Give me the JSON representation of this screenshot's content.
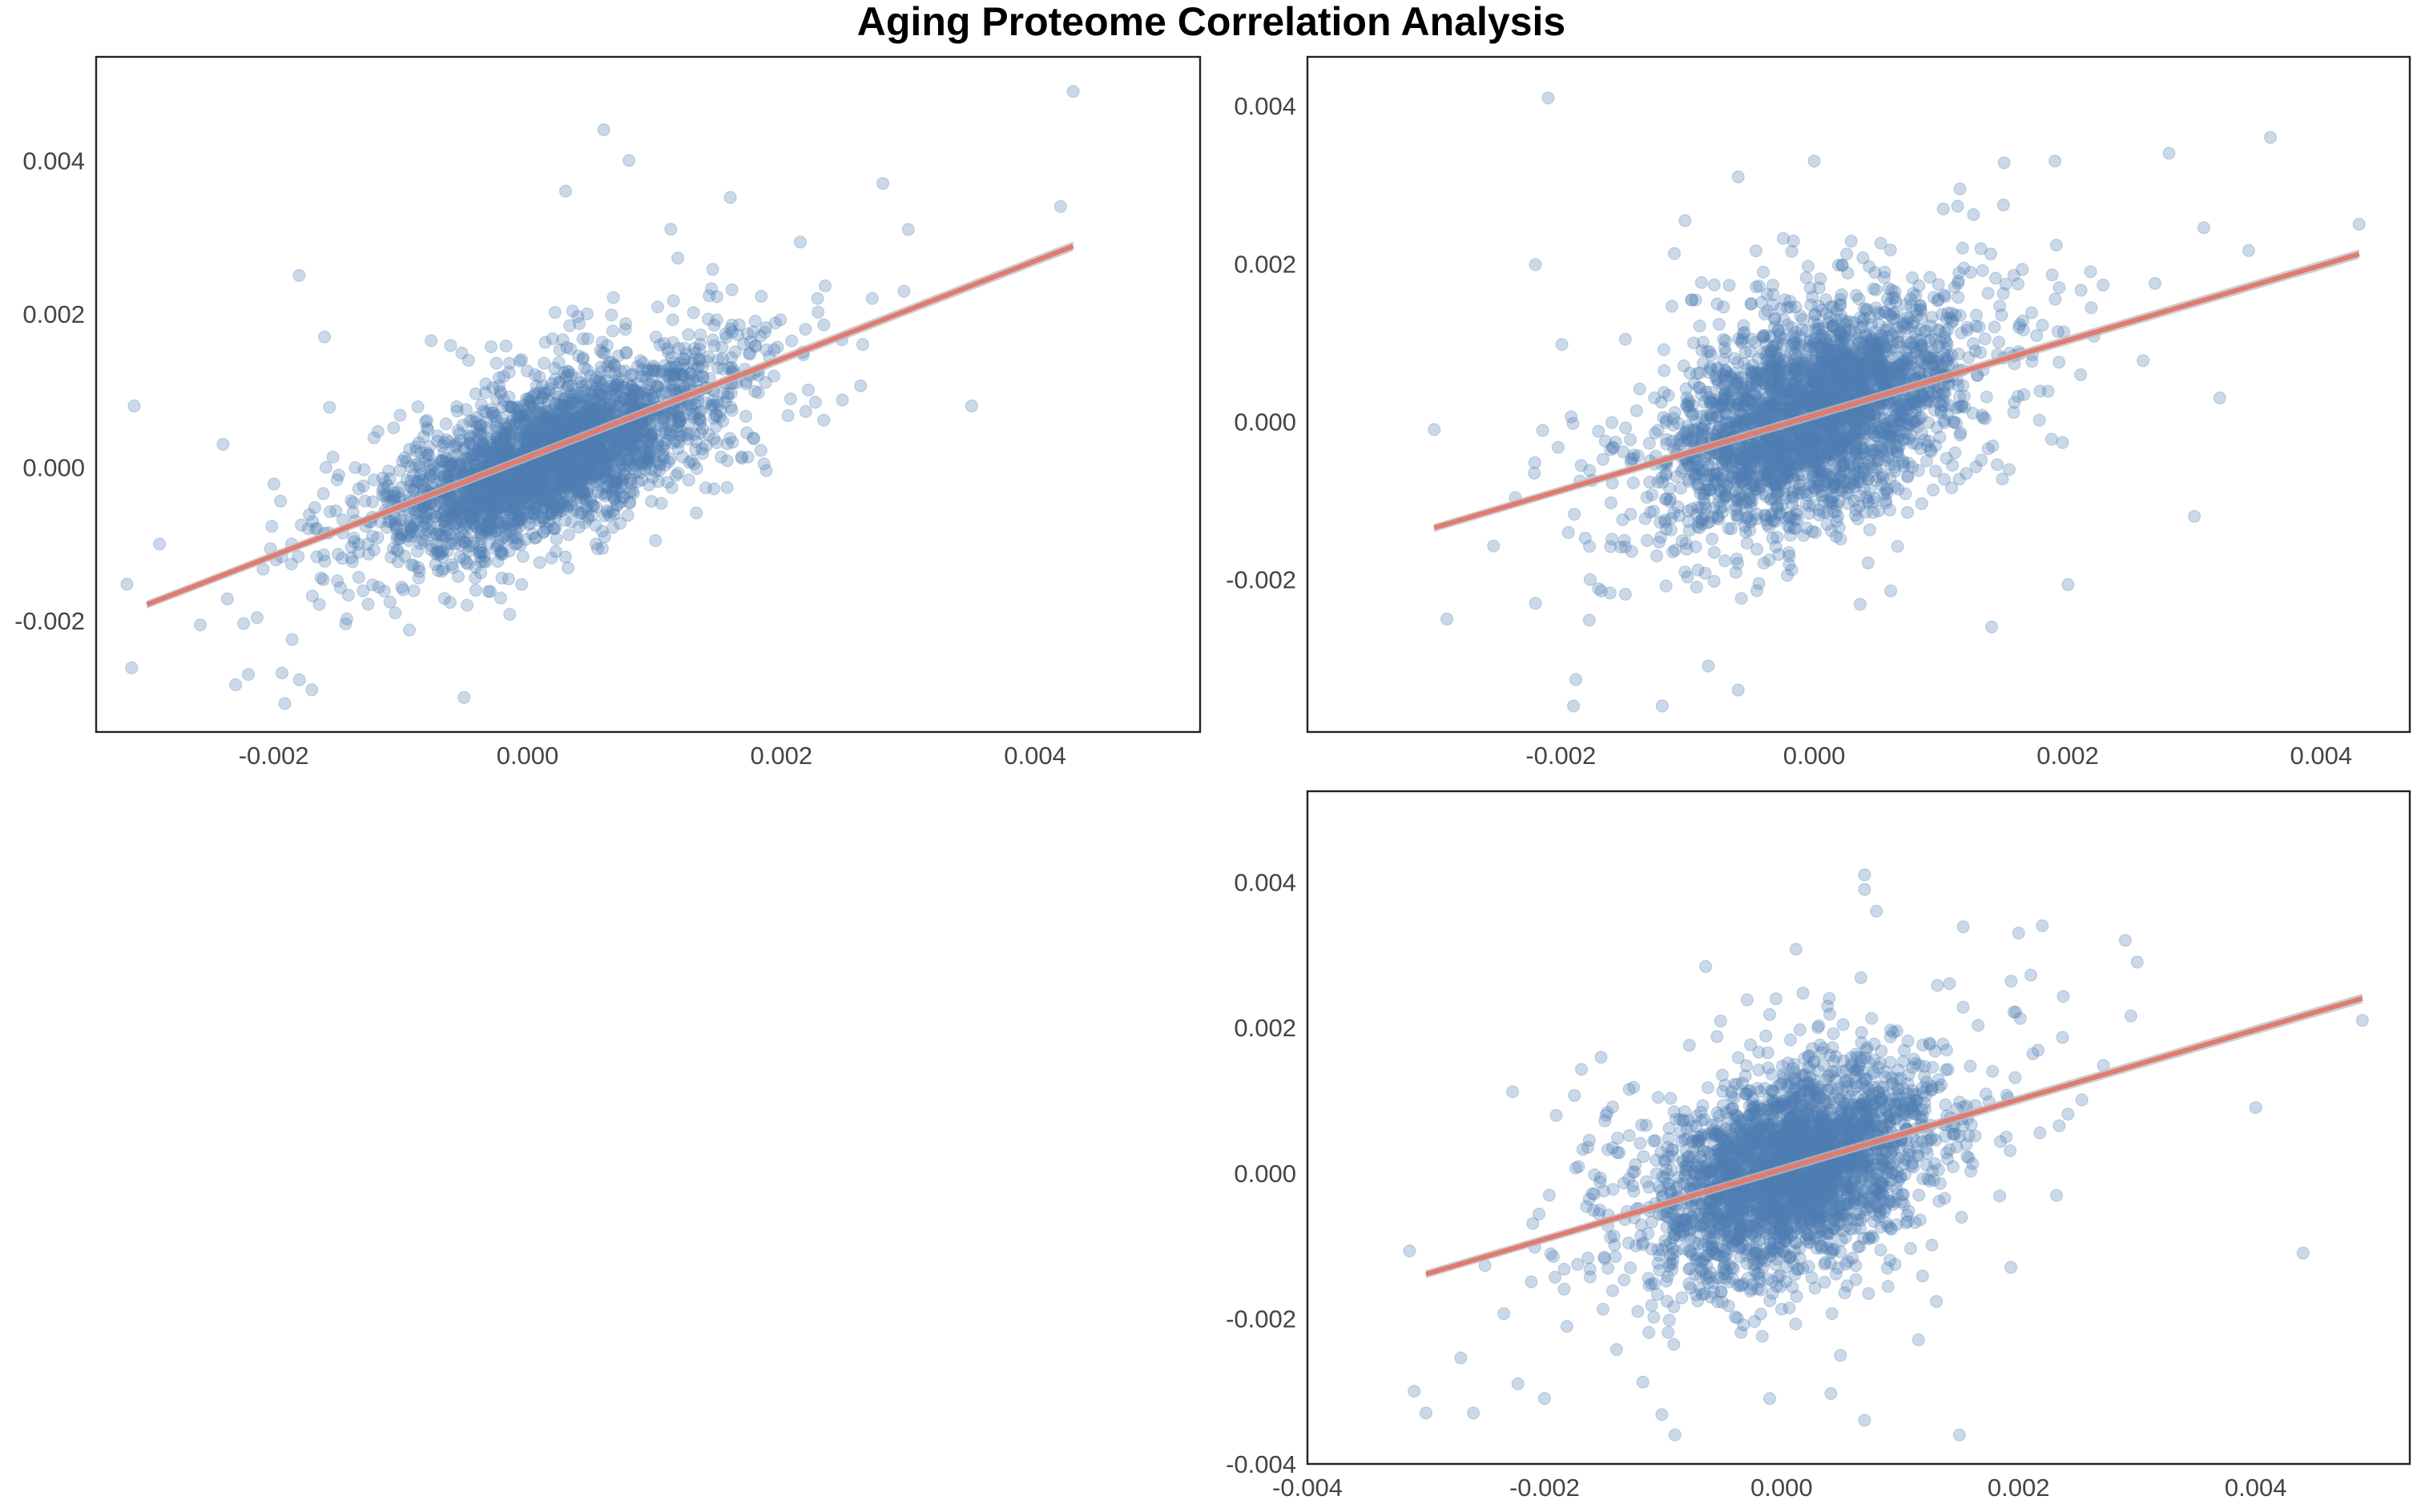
{
  "title": "Aging Proteome Correlation Analysis",
  "colors": {
    "points": "#4f7db3",
    "fit_line": "#e07b72",
    "confidence_band": "#bdbdbd",
    "frame": "#222222",
    "tick_text": "#444444"
  },
  "chart_data": [
    {
      "type": "scatter",
      "title": "",
      "xlabel": "",
      "ylabel": "",
      "xlim": [
        -0.0034,
        0.0053
      ],
      "ylim": [
        -0.00345,
        0.00535
      ],
      "x_ticks": [
        -0.002,
        0.0,
        0.002,
        0.004
      ],
      "x_tick_labels": [
        "-0.002",
        "0.000",
        "0.002",
        "0.004"
      ],
      "y_ticks": [
        -0.002,
        0.0,
        0.002,
        0.004
      ],
      "y_tick_labels": [
        "-0.002",
        "0.000",
        "0.002",
        "0.004"
      ],
      "grid": false,
      "approx_point_count": 3000,
      "point_alpha": 0.3,
      "core_cloud": {
        "x_center": 0.0002,
        "y_center": 0.0001,
        "x_sd": 0.0006,
        "y_sd": 0.00045
      },
      "fit_line": {
        "x_range": [
          -0.003,
          0.0043
        ],
        "slope": 0.64,
        "intercept": 0.00013
      },
      "outliers": [
        {
          "x": 0.0043,
          "y": 0.0049
        },
        {
          "x": 0.0006,
          "y": 0.0044
        },
        {
          "x": 0.0008,
          "y": 0.004
        },
        {
          "x": 0.0003,
          "y": 0.0036
        },
        {
          "x": 0.0028,
          "y": 0.0037
        },
        {
          "x": 0.0042,
          "y": 0.0034
        },
        {
          "x": 0.003,
          "y": 0.0031
        },
        {
          "x": -0.0018,
          "y": 0.0025
        },
        {
          "x": -0.0031,
          "y": 0.0008
        },
        {
          "x": -0.0029,
          "y": -0.001
        },
        {
          "x": -0.0017,
          "y": -0.0029
        },
        {
          "x": -0.0022,
          "y": -0.0027
        },
        {
          "x": -0.0005,
          "y": -0.003
        },
        {
          "x": 0.0035,
          "y": 0.0008
        },
        {
          "x": -0.0024,
          "y": 0.0003
        },
        {
          "x": -0.0016,
          "y": 0.0017
        }
      ]
    },
    {
      "type": "scatter",
      "title": "",
      "xlabel": "",
      "ylabel": "",
      "xlim": [
        -0.004,
        0.0047
      ],
      "ylim": [
        -0.00393,
        0.00462
      ],
      "x_ticks": [
        -0.002,
        0.0,
        0.002,
        0.004
      ],
      "x_tick_labels": [
        "-0.002",
        "0.000",
        "0.002",
        "0.004"
      ],
      "y_ticks": [
        -0.002,
        0.0,
        0.002,
        0.004
      ],
      "y_tick_labels": [
        "-0.002",
        "0.000",
        "0.002",
        "0.004"
      ],
      "grid": false,
      "approx_point_count": 3000,
      "point_alpha": 0.3,
      "core_cloud": {
        "x_center": 0.0,
        "y_center": 0.0,
        "x_sd": 0.00055,
        "y_sd": 0.0006
      },
      "fit_line": {
        "x_range": [
          -0.003,
          0.0043
        ],
        "slope": 0.475,
        "intercept": 8e-05
      },
      "outliers": [
        {
          "x": -0.0021,
          "y": 0.0041
        },
        {
          "x": 0.0036,
          "y": 0.0036
        },
        {
          "x": 0.0019,
          "y": 0.0033
        },
        {
          "x": 0.0028,
          "y": 0.0034
        },
        {
          "x": 0.0,
          "y": 0.0033
        },
        {
          "x": -0.0006,
          "y": 0.0031
        },
        {
          "x": 0.0043,
          "y": 0.0025
        },
        {
          "x": -0.003,
          "y": -0.0001
        },
        {
          "x": -0.0029,
          "y": -0.0025
        },
        {
          "x": -0.0019,
          "y": -0.0036
        },
        {
          "x": -0.0012,
          "y": -0.0036
        },
        {
          "x": 0.0014,
          "y": -0.0026
        },
        {
          "x": -0.0006,
          "y": -0.0034
        },
        {
          "x": 0.003,
          "y": -0.0012
        },
        {
          "x": 0.0032,
          "y": 0.0003
        },
        {
          "x": -0.0022,
          "y": -0.0023
        }
      ]
    },
    {
      "type": "scatter",
      "title": "",
      "xlabel": "",
      "ylabel": "",
      "xlim": [
        -0.004,
        0.0053
      ],
      "ylim": [
        -0.004,
        0.00525
      ],
      "x_ticks": [
        -0.004,
        -0.002,
        0.0,
        0.002,
        0.004
      ],
      "x_tick_labels": [
        "-0.004",
        "-0.002",
        "0.000",
        "0.002",
        "0.004"
      ],
      "y_ticks": [
        -0.004,
        -0.002,
        0.0,
        0.002,
        0.004
      ],
      "y_tick_labels": [
        "-0.004",
        "-0.002",
        "0.000",
        "0.002",
        "0.004"
      ],
      "grid": false,
      "approx_point_count": 3000,
      "point_alpha": 0.3,
      "core_cloud": {
        "x_center": 0.0001,
        "y_center": 0.0001,
        "x_sd": 0.00055,
        "y_sd": 0.0006
      },
      "fit_line": {
        "x_range": [
          -0.003,
          0.0049
        ],
        "slope": 0.48,
        "intercept": 5e-05
      },
      "outliers": [
        {
          "x": 0.0007,
          "y": 0.0041
        },
        {
          "x": 0.0007,
          "y": 0.0039
        },
        {
          "x": 0.0008,
          "y": 0.0036
        },
        {
          "x": 0.0022,
          "y": 0.0034
        },
        {
          "x": 0.002,
          "y": 0.0033
        },
        {
          "x": 0.0029,
          "y": 0.0032
        },
        {
          "x": 0.003,
          "y": 0.0029
        },
        {
          "x": 0.0049,
          "y": 0.0021
        },
        {
          "x": 0.0044,
          "y": -0.0011
        },
        {
          "x": 0.004,
          "y": 0.0009
        },
        {
          "x": -0.0031,
          "y": -0.003
        },
        {
          "x": -0.003,
          "y": -0.0033
        },
        {
          "x": -0.0026,
          "y": -0.0033
        },
        {
          "x": -0.0009,
          "y": -0.0036
        },
        {
          "x": 0.0015,
          "y": -0.0036
        },
        {
          "x": 0.0007,
          "y": -0.0034
        },
        {
          "x": -0.0001,
          "y": -0.0031
        },
        {
          "x": -0.002,
          "y": -0.0031
        }
      ]
    }
  ]
}
